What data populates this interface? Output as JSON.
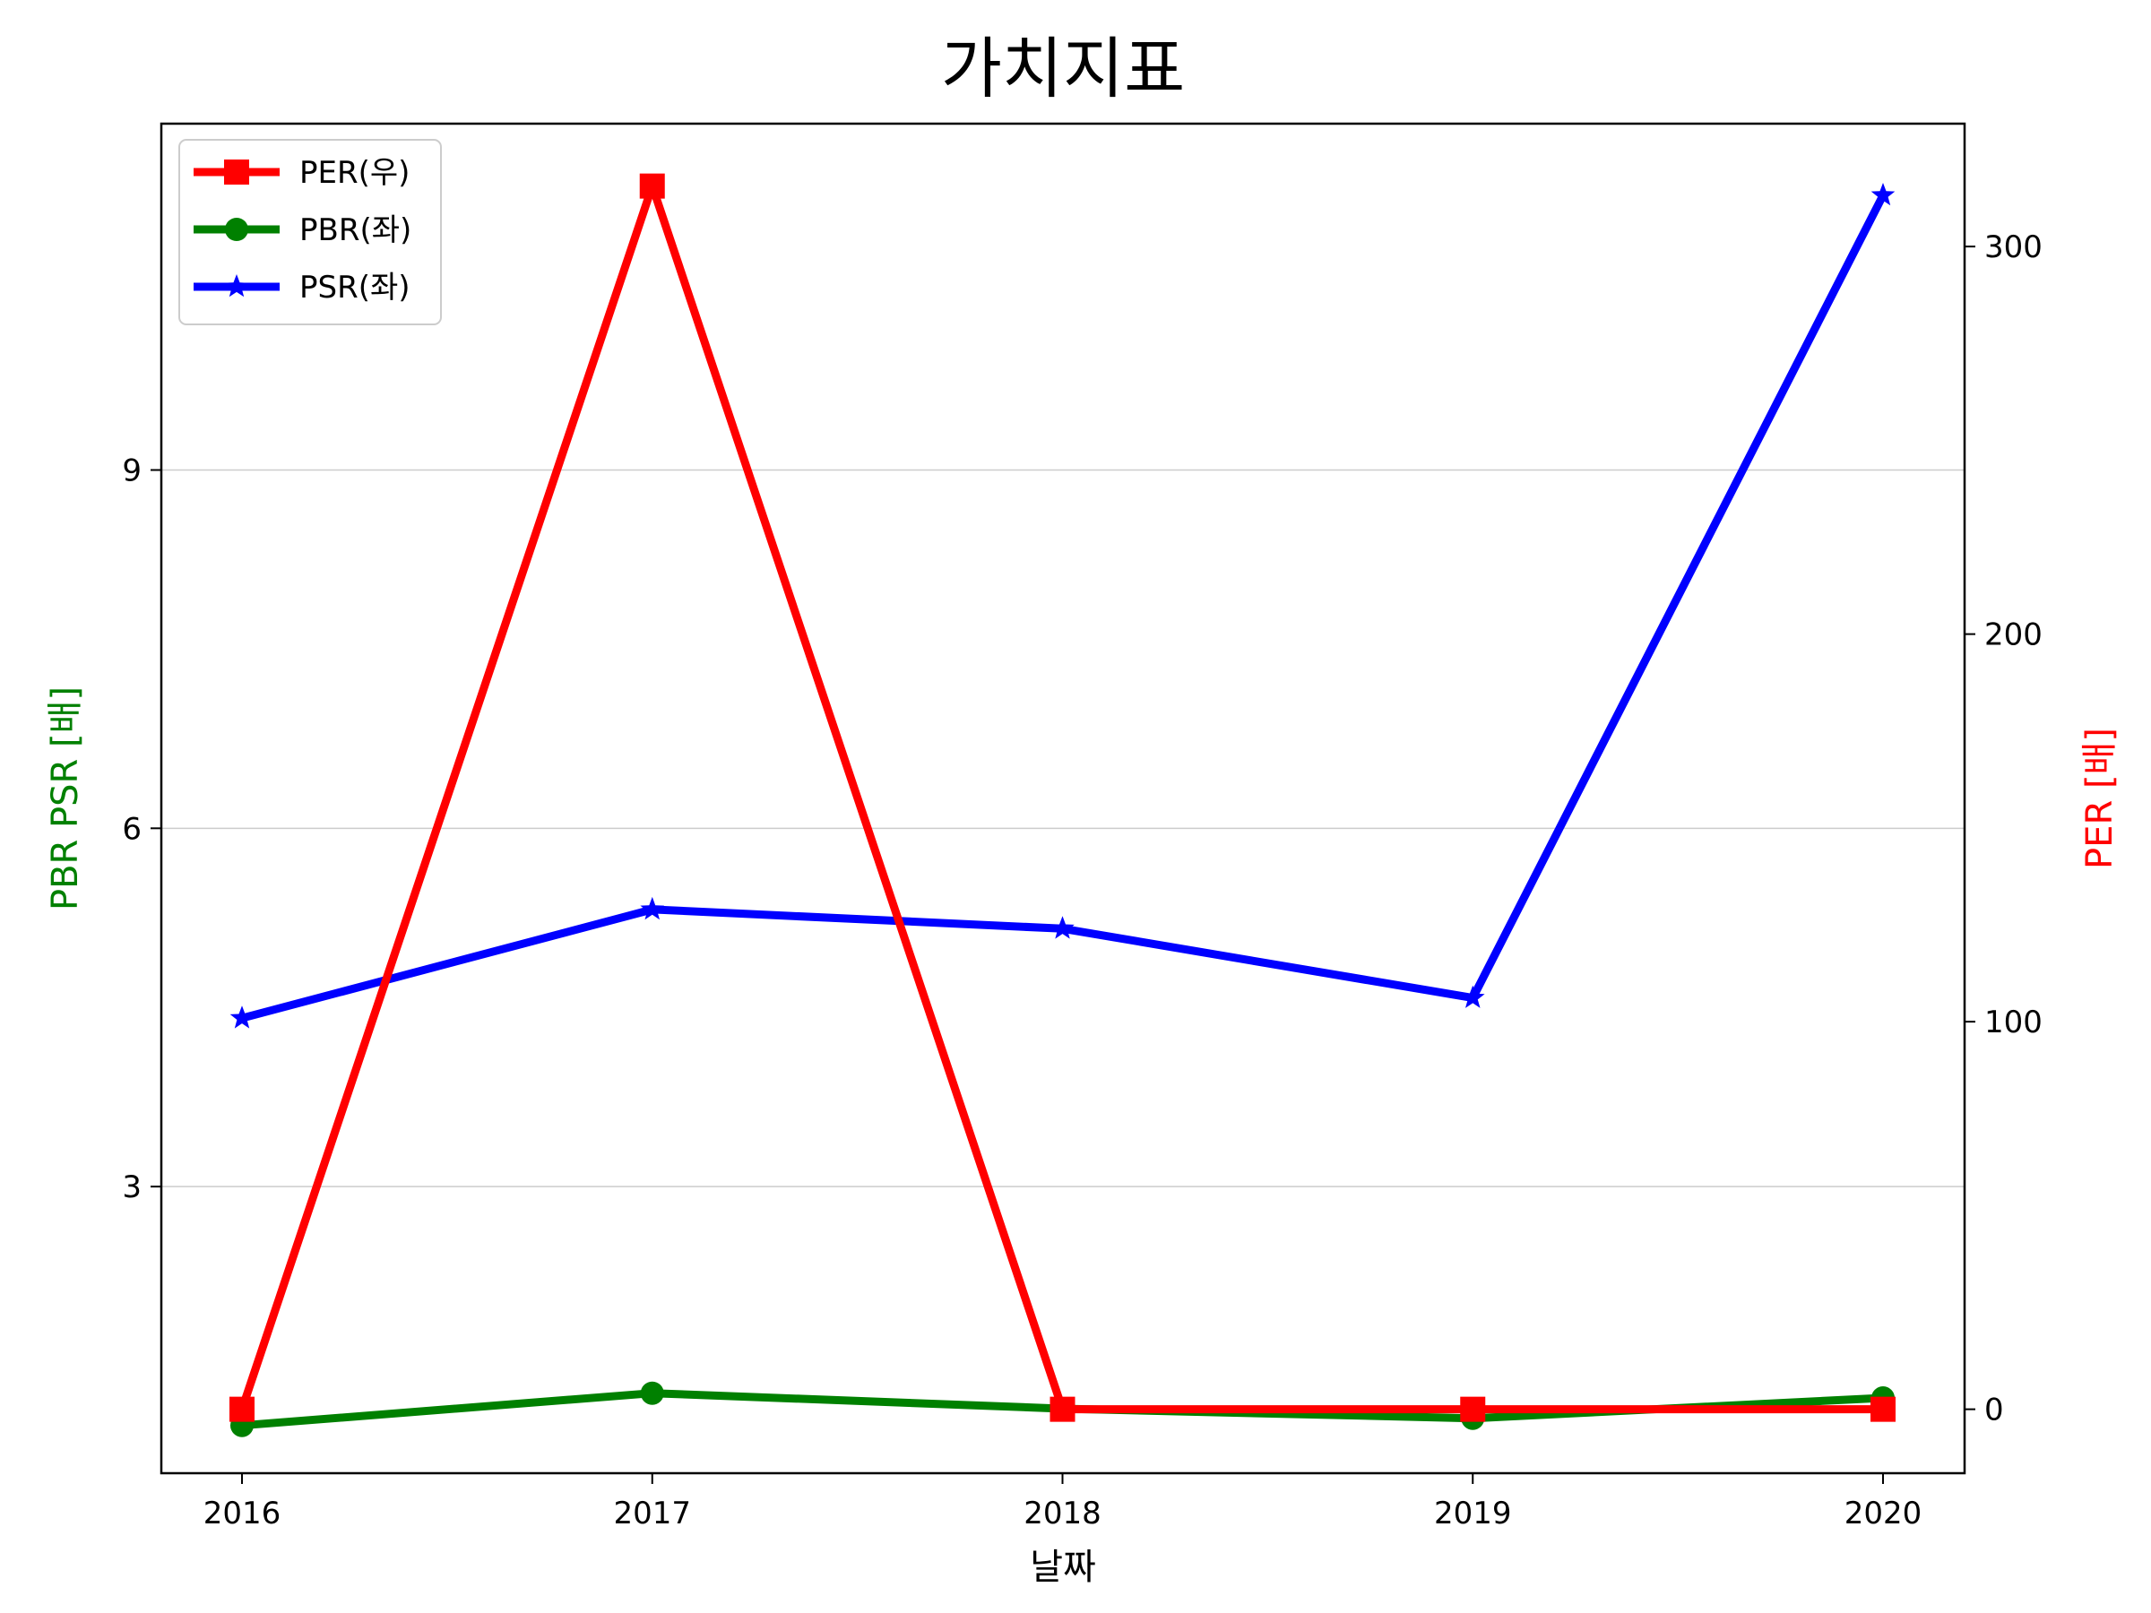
{
  "chart_data": {
    "type": "line",
    "title": "가치지표",
    "xlabel": "날짜",
    "ylabel_left": "PBR PSR [배]",
    "ylabel_right": "PER [배]",
    "x": [
      "2016",
      "2017",
      "2018",
      "2019",
      "2020"
    ],
    "y_left": {
      "min": 0.6,
      "max": 11.9,
      "ticks": [
        "3",
        "6",
        "9"
      ]
    },
    "y_right": {
      "min": -16.5,
      "max": 331.7,
      "ticks": [
        "0",
        "100",
        "200",
        "300"
      ]
    },
    "grid": "horizontal-left-axis",
    "legend_position": "upper-left",
    "series": [
      {
        "name": "PER(우)",
        "axis": "right",
        "marker": "square",
        "color": "#ff0000",
        "values": [
          0,
          315.6,
          0,
          0,
          0
        ]
      },
      {
        "name": "PBR(좌)",
        "axis": "left",
        "marker": "circle",
        "color": "#008000",
        "values": [
          1.0,
          1.27,
          1.14,
          1.06,
          1.23
        ]
      },
      {
        "name": "PSR(좌)",
        "axis": "left",
        "marker": "star",
        "color": "#0000ff",
        "values": [
          4.41,
          5.32,
          5.16,
          4.58,
          11.3
        ]
      }
    ],
    "colors": {
      "left_label": "#008000",
      "right_label": "#ff0000"
    }
  }
}
